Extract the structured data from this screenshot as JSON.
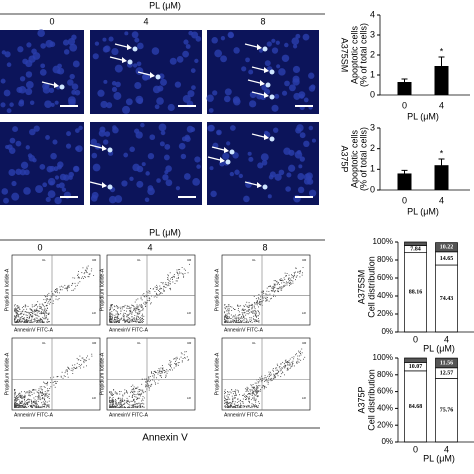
{
  "figure": {
    "top_header": "PL (μM)",
    "top_columns": [
      "0",
      "4",
      "8"
    ],
    "bottom_header": "PL (μM)",
    "bottom_columns": [
      "0",
      "4",
      "8"
    ],
    "flow_x_axis": "AnnexinV FITC-A",
    "flow_y_axis": "Propidium Iodide-A",
    "flow_quadrants": [
      "UL",
      "UR",
      "LL",
      "LR"
    ],
    "bottom_xlabel": "Annexin V"
  },
  "chart_data": [
    {
      "type": "bar",
      "side_label": "A375SM",
      "ylabel": [
        "Apoptotic cells",
        "(% of total cells)"
      ],
      "xlabel": "PL (μM)",
      "categories": [
        "0",
        "4"
      ],
      "values": [
        0.65,
        1.45
      ],
      "errors": [
        0.15,
        0.45
      ],
      "annotations": [
        "",
        "*"
      ],
      "color": "#000000",
      "ylim": [
        0,
        4
      ],
      "yticks": [
        0,
        1,
        2,
        3,
        4
      ]
    },
    {
      "type": "bar",
      "side_label": "A375P",
      "ylabel": [
        "Apoptotic cells",
        "(% of total cells)"
      ],
      "xlabel": "PL (μM)",
      "categories": [
        "0",
        "4"
      ],
      "values": [
        0.8,
        1.2
      ],
      "errors": [
        0.15,
        0.3
      ],
      "annotations": [
        "",
        "*"
      ],
      "color": "#000000",
      "ylim": [
        0,
        3
      ],
      "yticks": [
        0,
        1,
        2,
        3
      ]
    },
    {
      "type": "stacked_bar",
      "side_label": "A375SM",
      "ylabel": "Cell distribution",
      "xlabel": "PL (μM)",
      "categories": [
        "0",
        "4"
      ],
      "series": [
        {
          "color": "#ffffff",
          "values": [
            88.16,
            74.43
          ]
        },
        {
          "color": "#ffffff",
          "values": [
            7.84,
            14.65
          ]
        },
        {
          "color": "#555555",
          "values": [
            4.0,
            10.22
          ]
        }
      ],
      "ylim": [
        0,
        100
      ],
      "yticks": [
        {
          "value": 0,
          "label": "0%"
        },
        {
          "value": 20,
          "label": "20%"
        },
        {
          "value": 40,
          "label": "40%"
        },
        {
          "value": 60,
          "label": "60%"
        },
        {
          "value": 80,
          "label": "80%"
        },
        {
          "value": 100,
          "label": "100%"
        }
      ]
    },
    {
      "type": "stacked_bar",
      "side_label": "A375P",
      "ylabel": "Cell distribution",
      "xlabel": "PL (μM)",
      "categories": [
        "0",
        "4"
      ],
      "series": [
        {
          "color": "#ffffff",
          "values": [
            84.68,
            75.76
          ]
        },
        {
          "color": "#ffffff",
          "values": [
            10.07,
            12.57
          ]
        },
        {
          "color": "#555555",
          "values": [
            5.25,
            11.56
          ]
        }
      ],
      "ylim": [
        0,
        100
      ],
      "yticks": [
        {
          "value": 0,
          "label": "0%"
        },
        {
          "value": 20,
          "label": "20%"
        },
        {
          "value": 40,
          "label": "40%"
        },
        {
          "value": 60,
          "label": "60%"
        },
        {
          "value": 80,
          "label": "80%"
        },
        {
          "value": 100,
          "label": "100%"
        }
      ]
    }
  ]
}
